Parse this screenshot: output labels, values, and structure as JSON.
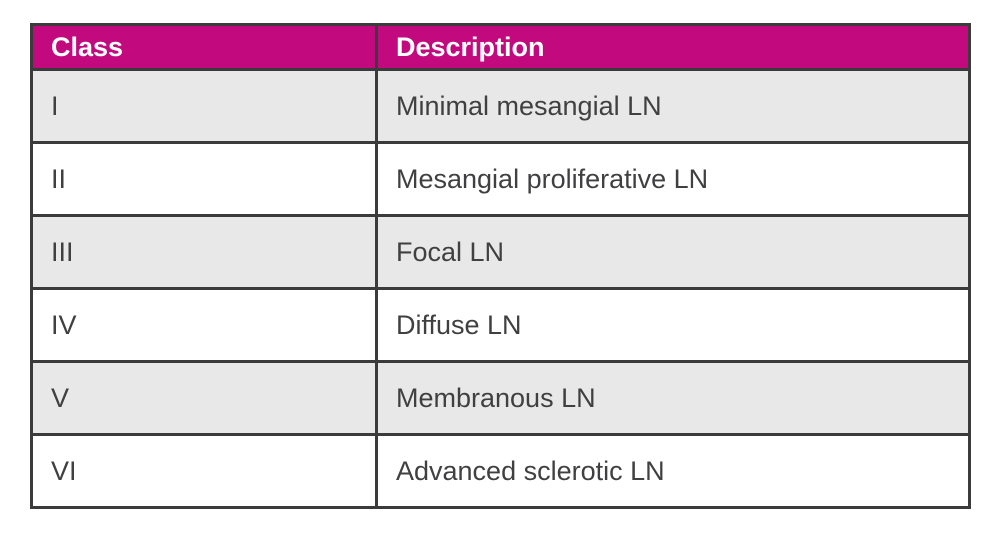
{
  "page": {
    "background_color": "#ffffff"
  },
  "table": {
    "columns": [
      {
        "label": "Class"
      },
      {
        "label": "Description"
      }
    ],
    "rows": [
      {
        "class": "I",
        "description": "Minimal mesangial LN"
      },
      {
        "class": "II",
        "description": "Mesangial proliferative LN"
      },
      {
        "class": "III",
        "description": "Focal LN"
      },
      {
        "class": "IV",
        "description": "Diffuse LN"
      },
      {
        "class": "V",
        "description": "Membranous LN"
      },
      {
        "class": "VI",
        "description": "Advanced sclerotic LN"
      }
    ],
    "style": {
      "header_bg": "#c20a7e",
      "header_text_color": "#ffffff",
      "alt_row_bg": "#e8e8e8",
      "row_bg": "#ffffff",
      "border_color": "#3b3b3b",
      "body_text_color": "#404042"
    }
  },
  "chart_data": {
    "type": "table",
    "columns": [
      "Class",
      "Description"
    ],
    "rows": [
      [
        "I",
        "Minimal mesangial LN"
      ],
      [
        "II",
        "Mesangial proliferative LN"
      ],
      [
        "III",
        "Focal LN"
      ],
      [
        "IV",
        "Diffuse LN"
      ],
      [
        "V",
        "Membranous LN"
      ],
      [
        "VI",
        "Advanced sclerotic LN"
      ]
    ]
  }
}
